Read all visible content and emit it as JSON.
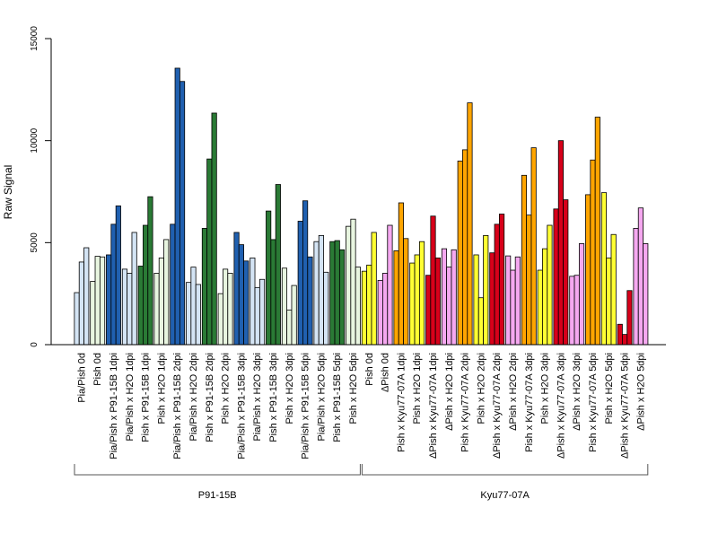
{
  "chart_data": {
    "type": "bar",
    "title": "",
    "xlabel": "",
    "ylabel": "Raw Signal",
    "ylim": [
      0,
      15000
    ],
    "yticks": [
      0,
      5000,
      10000,
      15000
    ],
    "grid": false,
    "legend": "none",
    "bars_per_group": 3,
    "categories": [
      "Pia/Pish 0d",
      "Pish 0d",
      "Pia/Pish x P91-15B 1dpi",
      "Pia/Pish x H2O 1dpi",
      "Pish x P91-15B 1dpi",
      "Pish x H2O 1dpi",
      "Pia/Pish x P91-15B 2dpi",
      "Pia/Pish x H2O 2dpi",
      "Pish x P91-15B 2dpi",
      "Pish x H2O 2dpi",
      "Pia/Pish x P91-15B 3dpi",
      "Pia/Pish x H2O 3dpi",
      "Pish x P91-15B 3dpi",
      "Pish x H2O 3dpi",
      "Pia/Pish x P91-15B 5dpi",
      "Pia/Pish x H2O 5dpi",
      "Pish x P91-15B 5dpi",
      "Pish x H2O 5dpi",
      "Pish 0d",
      "ΔPish 0d",
      "Pish x Kyu77-07A 1dpi",
      "Pish x H2O 1dpi",
      "ΔPish x Kyu77-07A 1dpi",
      "ΔPish x H2O 1dpi",
      "Pish x Kyu77-07A 2dpi",
      "Pish x H2O 2dpi",
      "ΔPish x Kyu77-07A 2dpi",
      "ΔPish x H2O 2dpi",
      "Pish x Kyu77-07A 3dpi",
      "Pish x H2O 3dpi",
      "ΔPish x Kyu77-07A 3dpi",
      "ΔPish x H2O 3dpi",
      "Pish x Kyu77-07A 5dpi",
      "Pish x H2O 5dpi",
      "ΔPish x Kyu77-07A 5dpi",
      "ΔPish x H2O 5dpi"
    ],
    "group_colors": [
      "#d4e4f4",
      "#e8f5e0",
      "#2060b0",
      "#d4e4f4",
      "#2a7a35",
      "#e8f5e0",
      "#2060b0",
      "#d4e4f4",
      "#2a7a35",
      "#e8f5e0",
      "#2060b0",
      "#d4e4f4",
      "#2a7a35",
      "#e8f5e0",
      "#2060b0",
      "#d4e4f4",
      "#2a7a35",
      "#e8f5e0",
      "#ffff33",
      "#f5a8f0",
      "#ffa500",
      "#ffff33",
      "#d7001a",
      "#f5a8f0",
      "#ffa500",
      "#ffff33",
      "#d7001a",
      "#f5a8f0",
      "#ffa500",
      "#ffff33",
      "#d7001a",
      "#f5a8f0",
      "#ffa500",
      "#ffff33",
      "#d7001a",
      "#f5a8f0"
    ],
    "values": [
      [
        2550,
        4050,
        4750
      ],
      [
        3100,
        4330,
        4300
      ],
      [
        4400,
        5900,
        6800
      ],
      [
        3700,
        3500,
        5500
      ],
      [
        3850,
        5850,
        7250
      ],
      [
        3500,
        4250,
        5150
      ],
      [
        5900,
        13550,
        12900
      ],
      [
        3050,
        3800,
        2950
      ],
      [
        5700,
        9100,
        11350
      ],
      [
        2500,
        3700,
        3500
      ],
      [
        5500,
        4900,
        4100
      ],
      [
        4250,
        2800,
        3200
      ],
      [
        6550,
        5150,
        7850
      ],
      [
        3750,
        1700,
        2900
      ],
      [
        6050,
        7050,
        4300
      ],
      [
        5050,
        5350,
        3550
      ],
      [
        5050,
        5100,
        4650
      ],
      [
        5800,
        6150,
        3800
      ],
      [
        3600,
        3900,
        5500
      ],
      [
        3150,
        3500,
        5850
      ],
      [
        4600,
        6950,
        5200
      ],
      [
        4000,
        4400,
        5050
      ],
      [
        3400,
        6300,
        4250
      ],
      [
        4700,
        3800,
        4650
      ],
      [
        9000,
        9550,
        11850
      ],
      [
        4400,
        2300,
        5350
      ],
      [
        4500,
        5900,
        6400
      ],
      [
        4350,
        3650,
        4300
      ],
      [
        8300,
        6350,
        9650
      ],
      [
        3650,
        4700,
        5850
      ],
      [
        6650,
        10000,
        7100
      ],
      [
        3350,
        3400,
        4950
      ],
      [
        7350,
        9050,
        11150
      ],
      [
        7450,
        4250,
        5400
      ],
      [
        1000,
        500,
        2650
      ],
      [
        5700,
        6700,
        4950
      ]
    ],
    "brackets": [
      {
        "label": "P91-15B",
        "from": 0,
        "to": 17
      },
      {
        "label": "Kyu77-07A",
        "from": 18,
        "to": 35
      }
    ]
  }
}
